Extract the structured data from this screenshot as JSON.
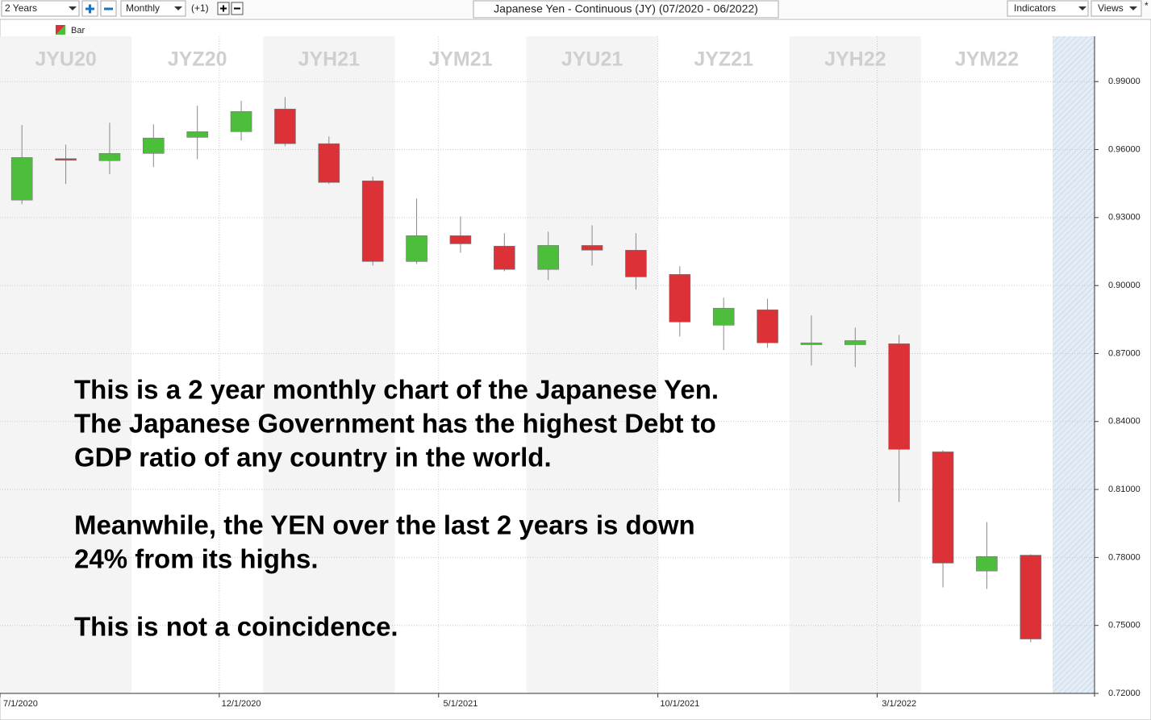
{
  "toolbar": {
    "period": "2 Years",
    "interval": "Monthly",
    "offset": "(+1)",
    "indicators": "Indicators",
    "views": "Views"
  },
  "chart_data": {
    "type": "candlestick",
    "title": "Japanese Yen - Continuous (JY) (07/2020 - 06/2022)",
    "legend_label": "Bar",
    "categories": [
      "7/1/2020",
      null,
      null,
      null,
      null,
      "12/1/2020",
      null,
      null,
      null,
      null,
      "5/1/2021",
      null,
      null,
      null,
      null,
      "10/1/2021",
      null,
      null,
      null,
      null,
      "3/1/2022",
      null,
      null,
      null
    ],
    "open": [
      0.9377,
      0.956,
      0.9551,
      0.9583,
      0.9654,
      0.9679,
      0.9779,
      0.9626,
      0.9462,
      0.9106,
      0.922,
      0.9174,
      0.9071,
      0.9177,
      0.9156,
      0.9049,
      0.8825,
      0.8893,
      0.8739,
      0.8739,
      0.8743,
      0.8266,
      0.774,
      0.781
    ],
    "high": [
      0.9708,
      0.9622,
      0.9718,
      0.9711,
      0.9793,
      0.9815,
      0.9832,
      0.9658,
      0.948,
      0.9384,
      0.9305,
      0.9231,
      0.9238,
      0.9266,
      0.9231,
      0.9085,
      0.8946,
      0.8942,
      0.8868,
      0.8814,
      0.8782,
      0.8273,
      0.7956,
      0.7814
    ],
    "low": [
      0.9359,
      0.9448,
      0.9491,
      0.9523,
      0.9558,
      0.964,
      0.9615,
      0.9448,
      0.9088,
      0.9095,
      0.9145,
      0.9063,
      0.9024,
      0.9088,
      0.8982,
      0.8775,
      0.8715,
      0.8725,
      0.8647,
      0.864,
      0.8045,
      0.7668,
      0.7661,
      0.7426
    ],
    "close": [
      0.9565,
      0.9555,
      0.9583,
      0.9651,
      0.9679,
      0.9768,
      0.9626,
      0.9455,
      0.9106,
      0.922,
      0.9184,
      0.9071,
      0.9177,
      0.9156,
      0.9038,
      0.8839,
      0.89,
      0.8747,
      0.8747,
      0.8757,
      0.8277,
      0.7775,
      0.7804,
      0.744
    ],
    "up_color": "#4dbe3c",
    "down_color": "#dc3237",
    "contracts": [
      "JYU20",
      "JYZ20",
      "JYH21",
      "JYM21",
      "JYU21",
      "JYZ21",
      "JYH22",
      "JYM22"
    ],
    "ylim": [
      0.72,
      1.01
    ],
    "yticks": [
      {
        "value": 0.72,
        "label": "0.72000"
      },
      {
        "value": 0.75,
        "label": "0.75000"
      },
      {
        "value": 0.78,
        "label": "0.78000"
      },
      {
        "value": 0.81,
        "label": "0.81000"
      },
      {
        "value": 0.84,
        "label": "0.84000"
      },
      {
        "value": 0.87,
        "label": "0.87000"
      },
      {
        "value": 0.9,
        "label": "0.90000"
      },
      {
        "value": 0.93,
        "label": "0.93000"
      },
      {
        "value": 0.96,
        "label": "0.96000"
      },
      {
        "value": 0.99,
        "label": "0.99000"
      }
    ],
    "grid": true,
    "annotation": [
      [
        "This is a 2 year monthly chart of the Japanese Yen.",
        "The Japanese Government has the highest Debt to",
        "GDP ratio of any country in the world."
      ],
      [
        "Meanwhile, the YEN over the last 2 years is down",
        "24% from its highs."
      ],
      [
        "This is not a coincidence."
      ]
    ]
  }
}
